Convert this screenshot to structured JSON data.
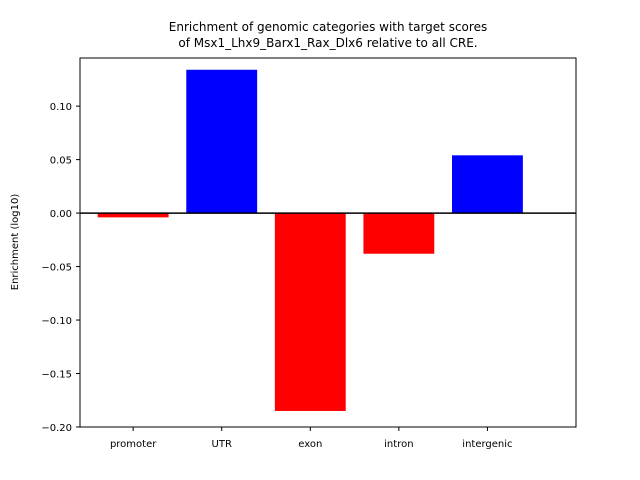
{
  "chart_data": {
    "type": "bar",
    "title_lines": [
      "Enrichment of genomic categories with target scores",
      "of Msx1_Lhx9_Barx1_Rax_Dlx6 relative to all CRE."
    ],
    "xlabel": "",
    "ylabel": "Enrichment (log10)",
    "categories": [
      "promoter",
      "UTR",
      "exon",
      "intron",
      "intergenic"
    ],
    "values": [
      -0.004,
      0.134,
      -0.185,
      -0.038,
      0.054
    ],
    "ylim": [
      -0.2,
      0.145
    ],
    "yticks": [
      0.1,
      0.05,
      0.0,
      -0.05,
      -0.1,
      -0.15,
      -0.2
    ],
    "ytick_labels": [
      "0.10",
      "0.05",
      "0.00",
      "−0.05",
      "−0.10",
      "−0.15",
      "−0.20"
    ],
    "positive_color": "#0000ff",
    "negative_color": "#ff0000",
    "zero_line": true,
    "grid": false
  }
}
